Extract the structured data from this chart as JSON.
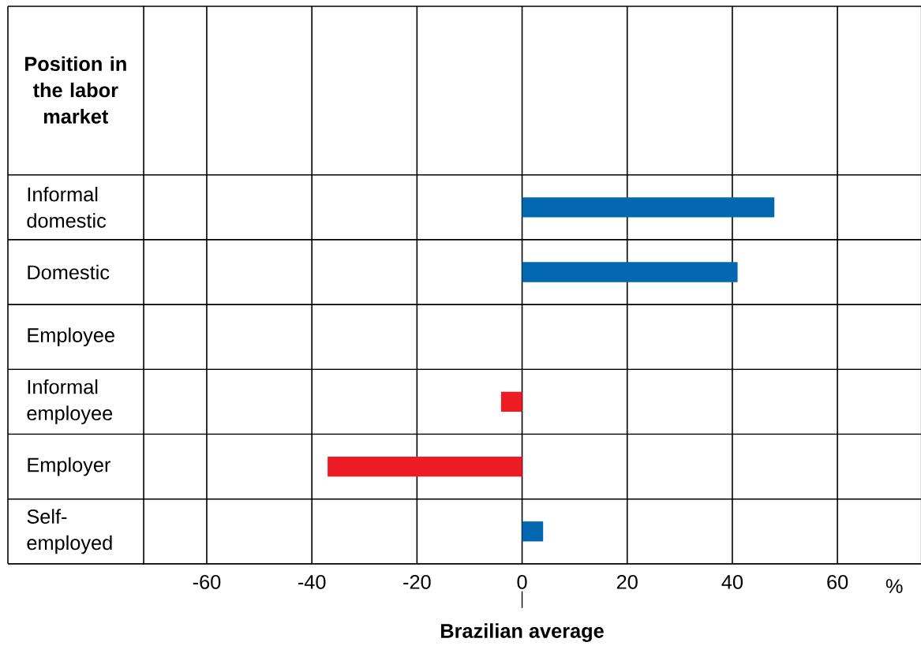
{
  "chart_data": {
    "type": "bar",
    "orientation": "horizontal",
    "ylabel": "Position in the labor market",
    "xlabel": "%",
    "categories": [
      "Informal domestic",
      "Domestic",
      "Employee",
      "Informal employee",
      "Employer",
      "Self-employed"
    ],
    "values": [
      48,
      41,
      null,
      -4,
      -37,
      4
    ],
    "colors": [
      "#0468b1",
      "#0468b1",
      "#0468b1",
      "#ed1c24",
      "#ed1c24",
      "#0468b1"
    ],
    "xlim": [
      -72,
      76
    ],
    "xticks": [
      -60,
      -40,
      -20,
      0,
      20,
      40,
      60
    ],
    "grid": "x",
    "ref_lines": [
      {
        "axis": "x",
        "value": 0,
        "label": "Brazilian average"
      }
    ]
  }
}
